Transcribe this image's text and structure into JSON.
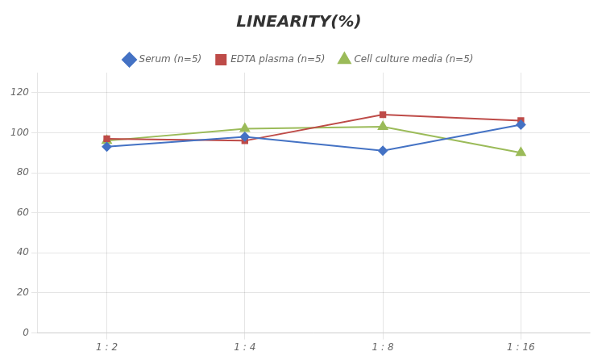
{
  "chart_data": {
    "type": "line",
    "title": "LINEARITY(%)",
    "categories": [
      "1 : 2",
      "1 : 4",
      "1 : 8",
      "1 : 16"
    ],
    "series": [
      {
        "name": "Serum (n=5)",
        "color": "#4472C4",
        "marker": "diamond",
        "values": [
          93,
          98,
          91,
          104
        ]
      },
      {
        "name": "EDTA plasma (n=5)",
        "color": "#BE4B48",
        "marker": "square",
        "values": [
          97,
          96,
          109,
          106
        ]
      },
      {
        "name": "Cell culture media (n=5)",
        "color": "#9BBB59",
        "marker": "triangle",
        "values": [
          96,
          102,
          103,
          90
        ]
      }
    ],
    "ylim": [
      0,
      130
    ],
    "yticks": [
      0,
      20,
      40,
      60,
      80,
      100,
      120
    ],
    "grid": true,
    "legend": "top"
  }
}
